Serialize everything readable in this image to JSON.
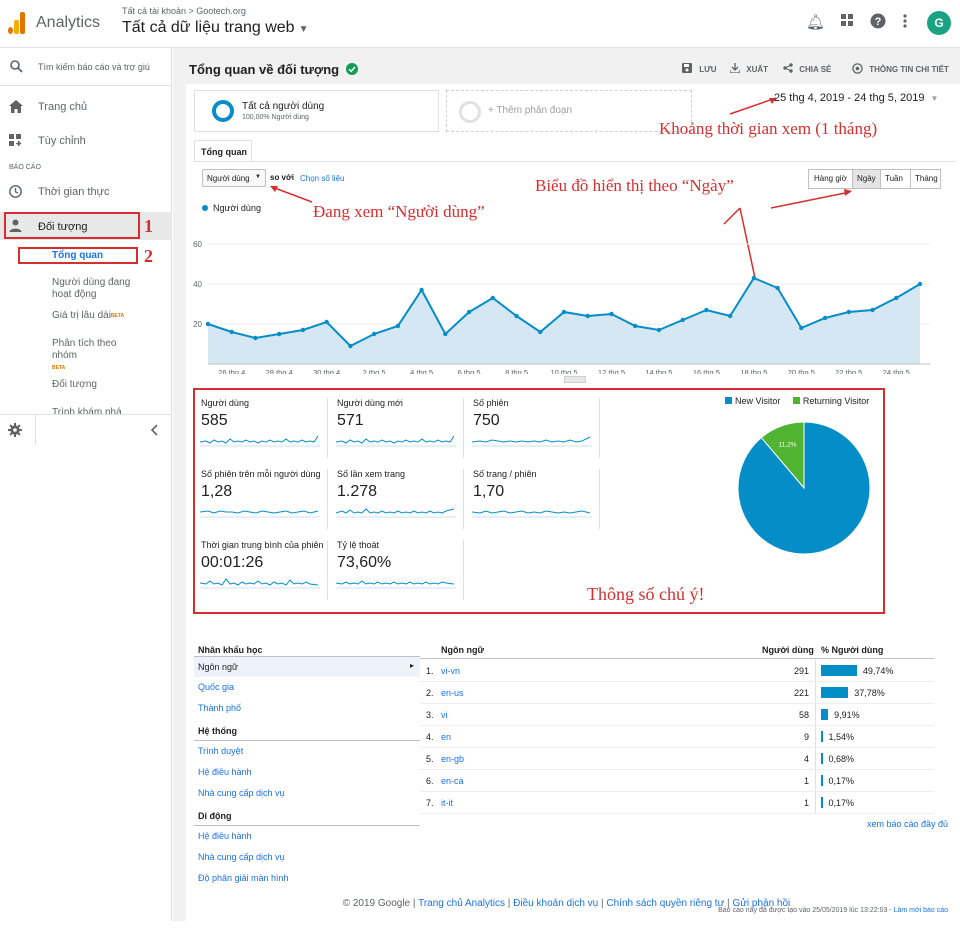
{
  "header": {
    "app_name": "Analytics",
    "breadcrumb": "Tất cả tài khoản > Gootech.org",
    "property": "Tất cả dữ liệu trang web",
    "avatar_letter": "G"
  },
  "sidebar": {
    "search_placeholder": "Tìm kiếm báo cáo và trợ giú",
    "home": "Trang chủ",
    "customize": "Tùy chỉnh",
    "reports_heading": "BÁO CÁO",
    "realtime": "Thời gian thực",
    "audience": "Đối tượng",
    "overview": "Tổng quan",
    "active_users": "Người dùng đang hoạt động",
    "lifetime_value": "Giá trị lâu dài",
    "lifetime_beta": "BETA",
    "cohort": "Phân tích theo nhóm",
    "cohort_beta": "BETA",
    "audiences": "Đối tượng",
    "explorer": "Trình khám phá"
  },
  "page": {
    "title": "Tổng quan về đối tượng",
    "save": "LƯU",
    "export": "XUẤT",
    "share": "CHIA SẺ",
    "insights": "THÔNG TIN CHI TIẾT",
    "segment_name": "Tất cả người dùng",
    "segment_sub": "100,00% Người dùng",
    "add_segment": "+ Thêm phân đoạn",
    "date_range": "25 thg 4, 2019 - 24 thg 5, 2019",
    "tab": "Tổng quan",
    "metric_select": "Người dùng",
    "vs": "so với",
    "choose_metric": "Chọn số liệu",
    "granularity": [
      "Hàng giờ",
      "Ngày",
      "Tuần",
      "Tháng"
    ],
    "legend": "Người dùng"
  },
  "annotations": {
    "num1": "1",
    "num2": "2",
    "time_range": "Khoảng thời gian xem (1 tháng)",
    "by_day": "Biểu đồ hiển thị theo “Ngày”",
    "viewing_users": "Đang xem “Người dùng”",
    "key_metrics": "Thông số chú ý!"
  },
  "chart_data": [
    {
      "type": "area",
      "series": [
        {
          "name": "Người dùng",
          "values": [
            20,
            16,
            13,
            15,
            17,
            21,
            9,
            15,
            19,
            37,
            15,
            26,
            33,
            24,
            16,
            26,
            24,
            25,
            19,
            17,
            22,
            27,
            24,
            43,
            38,
            18,
            23,
            26,
            27,
            33,
            40
          ]
        }
      ],
      "x_tick_labels": [
        "26 thg 4",
        "28 thg 4",
        "30 thg 4",
        "2 thg 5",
        "4 thg 5",
        "6 thg 5",
        "8 thg 5",
        "10 thg 5",
        "12 thg 5",
        "14 thg 5",
        "16 thg 5",
        "18 thg 5",
        "20 thg 5",
        "22 thg 5",
        "24 thg 5"
      ],
      "y_tick_labels": [
        "20",
        "40",
        "60"
      ],
      "ylim": [
        0,
        70
      ],
      "color": "#058dc7"
    },
    {
      "type": "pie",
      "labels": [
        "New Visitor",
        "Returning Visitor"
      ],
      "values": [
        88.8,
        11.2
      ],
      "value_labels": [
        "88,8%",
        "11,2%"
      ],
      "colors": [
        "#058dc7",
        "#50b432"
      ],
      "legend_position": "top-right"
    }
  ],
  "metrics": [
    {
      "name": "Người dùng",
      "value": "585"
    },
    {
      "name": "Người dùng mới",
      "value": "571"
    },
    {
      "name": "Số phiên",
      "value": "750"
    },
    {
      "name": "Số phiên trên mỗi người dùng",
      "value": "1,28"
    },
    {
      "name": "Số lần xem trang",
      "value": "1.278"
    },
    {
      "name": "Số trang / phiên",
      "value": "1,70"
    },
    {
      "name": "Thời gian trung bình của phiên",
      "value": "00:01:26"
    },
    {
      "name": "Tỷ lệ thoát",
      "value": "73,60%"
    }
  ],
  "demographics": {
    "heading1": "Nhân khẩu học",
    "items1": [
      "Ngôn ngữ",
      "Quốc gia",
      "Thành phố"
    ],
    "heading2": "Hệ thống",
    "items2": [
      "Trình duyệt",
      "Hệ điều hành",
      "Nhà cung cấp dịch vụ"
    ],
    "heading3": "Di động",
    "items3": [
      "Hệ điều hành",
      "Nhà cung cấp dịch vụ",
      "Độ phân giải màn hình"
    ]
  },
  "language_table": {
    "headers": [
      "Ngôn ngữ",
      "Người dùng",
      "% Người dùng"
    ],
    "rows": [
      {
        "rank": "1.",
        "lang": "vi-vn",
        "users": "291",
        "pct": "49,74%",
        "pct_value": 49.74
      },
      {
        "rank": "2.",
        "lang": "en-us",
        "users": "221",
        "pct": "37,78%",
        "pct_value": 37.78
      },
      {
        "rank": "3.",
        "lang": "vi",
        "users": "58",
        "pct": "9,91%",
        "pct_value": 9.91
      },
      {
        "rank": "4.",
        "lang": "en",
        "users": "9",
        "pct": "1,54%",
        "pct_value": 1.54
      },
      {
        "rank": "5.",
        "lang": "en-gb",
        "users": "4",
        "pct": "0,68%",
        "pct_value": 0.68
      },
      {
        "rank": "6.",
        "lang": "en-ca",
        "users": "1",
        "pct": "0,17%",
        "pct_value": 0.17
      },
      {
        "rank": "7.",
        "lang": "it-it",
        "users": "1",
        "pct": "0,17%",
        "pct_value": 0.17
      }
    ],
    "full_report": "xem báo cáo đầy đủ"
  },
  "footer": {
    "generated": "Báo cáo này đã được tạo vào 25/05/2019 lúc 13:22:03 -",
    "refresh": "Làm mới báo cáo",
    "copyright": "© 2019 Google",
    "links": [
      "Trang chủ Analytics",
      "Điều khoản dịch vụ",
      "Chính sách quyền riêng tư",
      "Gửi phản hồi"
    ]
  }
}
